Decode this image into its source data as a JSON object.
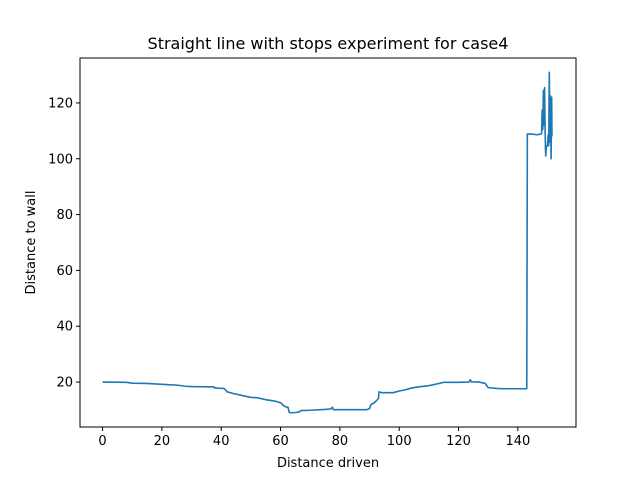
{
  "chart_data": {
    "type": "line",
    "title": "Straight line with stops experiment for case4",
    "xlabel": "Distance driven",
    "ylabel": "Distance to wall",
    "xlim": [
      -7.6,
      159.6
    ],
    "ylim": [
      3.9,
      136.1
    ],
    "xticks": [
      0,
      20,
      40,
      60,
      80,
      100,
      120,
      140
    ],
    "yticks": [
      20,
      40,
      60,
      80,
      100,
      120
    ],
    "grid": false,
    "legend": "none",
    "series": [
      {
        "color": "#1f77b4",
        "points": [
          [
            0,
            20.0
          ],
          [
            8,
            19.9
          ],
          [
            10,
            19.6
          ],
          [
            15,
            19.5
          ],
          [
            20,
            19.2
          ],
          [
            25,
            18.9
          ],
          [
            28,
            18.5
          ],
          [
            30,
            18.4
          ],
          [
            35,
            18.3
          ],
          [
            37.5,
            18.3
          ],
          [
            37.8,
            17.8
          ],
          [
            38.2,
            18.0
          ],
          [
            38.5,
            17.8
          ],
          [
            41,
            17.7
          ],
          [
            42,
            16.5
          ],
          [
            44,
            15.9
          ],
          [
            47,
            15.2
          ],
          [
            50,
            14.5
          ],
          [
            52,
            14.4
          ],
          [
            55,
            13.7
          ],
          [
            58,
            13.2
          ],
          [
            60,
            12.6
          ],
          [
            61,
            11.6
          ],
          [
            62,
            11.0
          ],
          [
            62.5,
            11.0
          ],
          [
            63,
            9.0
          ],
          [
            65,
            9.1
          ],
          [
            66,
            9.2
          ],
          [
            67,
            9.8
          ],
          [
            70,
            9.9
          ],
          [
            75,
            10.2
          ],
          [
            77,
            10.4
          ],
          [
            77.5,
            11.0
          ],
          [
            77.8,
            10.1
          ],
          [
            80,
            10.1
          ],
          [
            85,
            10.1
          ],
          [
            89,
            10.1
          ],
          [
            90,
            10.5
          ],
          [
            90.5,
            12.0
          ],
          [
            91.5,
            12.5
          ],
          [
            92.5,
            13.5
          ],
          [
            93,
            14.2
          ],
          [
            93.2,
            16.5
          ],
          [
            94,
            16.2
          ],
          [
            98,
            16.2
          ],
          [
            100,
            16.8
          ],
          [
            102,
            17.2
          ],
          [
            104,
            17.8
          ],
          [
            106,
            18.2
          ],
          [
            110,
            18.7
          ],
          [
            113,
            19.4
          ],
          [
            115,
            19.9
          ],
          [
            120,
            19.9
          ],
          [
            123.5,
            20.0
          ],
          [
            124,
            20.8
          ],
          [
            124.3,
            20.1
          ],
          [
            127,
            20.0
          ],
          [
            129,
            19.5
          ],
          [
            130,
            18.0
          ],
          [
            133,
            17.7
          ],
          [
            135,
            17.6
          ],
          [
            140,
            17.6
          ],
          [
            143,
            17.6
          ],
          [
            143.2,
            108.9
          ],
          [
            145,
            108.8
          ],
          [
            146.5,
            108.6
          ],
          [
            147.5,
            108.8
          ],
          [
            148,
            109.0
          ],
          [
            148.2,
            117.5
          ],
          [
            148.4,
            110.5
          ],
          [
            148.6,
            124.5
          ],
          [
            148.8,
            112.0
          ],
          [
            149.0,
            125.5
          ],
          [
            149.2,
            110.0
          ],
          [
            149.3,
            104.0
          ],
          [
            149.4,
            101.0
          ],
          [
            149.6,
            104.5
          ],
          [
            150.0,
            104.5
          ],
          [
            150.2,
            108.5
          ],
          [
            150.4,
            104.8
          ],
          [
            150.6,
            131.0
          ],
          [
            150.8,
            106.0
          ],
          [
            151.0,
            122.5
          ],
          [
            151.2,
            100.0
          ],
          [
            151.4,
            122.0
          ],
          [
            151.5,
            108.0
          ]
        ]
      }
    ]
  }
}
